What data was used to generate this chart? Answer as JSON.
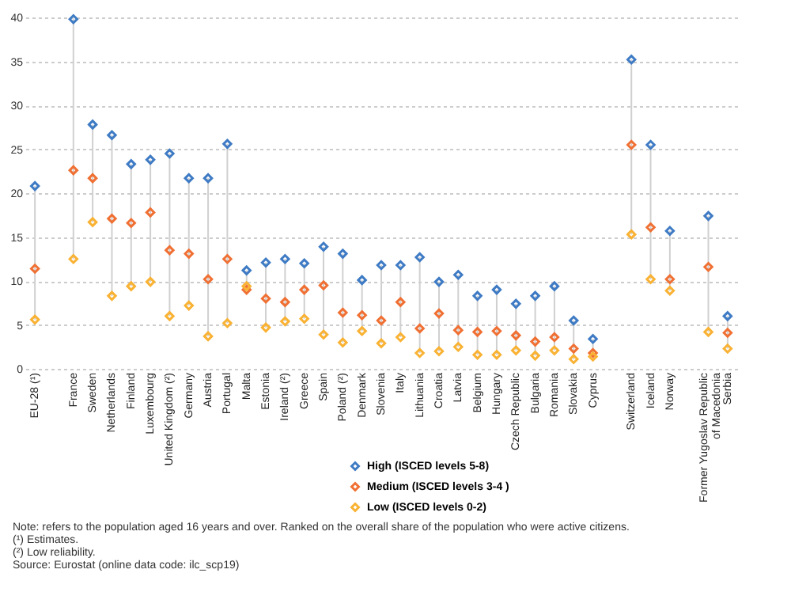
{
  "chart_data": {
    "type": "scatter",
    "marker": "diamond",
    "grid": "y",
    "legend": "bottom",
    "categories": [
      "EU-28 (¹)",
      null,
      "France",
      "Sweden",
      "Netherlands",
      "Finland",
      "Luxembourg",
      "United Kingdom (²)",
      "Germany",
      "Austria",
      "Portugal",
      "Malta",
      "Estonia",
      "Ireland (²)",
      "Greece",
      "Spain",
      "Poland (²)",
      "Denmark",
      "Slovenia",
      "Italy",
      "Lithuania",
      "Croatia",
      "Latvia",
      "Belgium",
      "Hungary",
      "Czech Republic",
      "Bulgaria",
      "Romania",
      "Slovakia",
      "Cyprus",
      null,
      "Switzerland",
      "Iceland",
      "Norway",
      null,
      "Former Yugoslav Republic of Macedonia",
      "Serbia"
    ],
    "ylim": [
      0,
      40
    ],
    "yticks": [
      0,
      5,
      10,
      15,
      20,
      25,
      30,
      35,
      40
    ],
    "series": [
      {
        "name": "High (ISCED levels 5-8)",
        "color": "#3e7bc4",
        "values": [
          20.8,
          null,
          39.8,
          27.8,
          26.6,
          23.3,
          23.8,
          24.5,
          21.7,
          21.7,
          25.6,
          11.2,
          12.1,
          12.5,
          12.0,
          13.9,
          13.1,
          10.1,
          11.8,
          11.8,
          12.7,
          9.9,
          10.7,
          8.3,
          9.0,
          7.4,
          8.3,
          9.4,
          5.5,
          3.4,
          null,
          35.2,
          25.5,
          15.7,
          null,
          17.4,
          6.0
        ]
      },
      {
        "name": "Medium (ISCED levels 3-4 )",
        "color": "#f07033",
        "values": [
          11.4,
          null,
          22.6,
          21.7,
          17.1,
          16.6,
          17.8,
          13.5,
          13.1,
          10.2,
          12.5,
          9.0,
          8.0,
          7.6,
          9.0,
          9.5,
          6.4,
          6.1,
          5.5,
          7.6,
          4.6,
          6.3,
          4.4,
          4.2,
          4.3,
          3.8,
          3.1,
          3.6,
          2.3,
          1.8,
          null,
          25.5,
          16.1,
          10.2,
          null,
          11.6,
          4.1
        ]
      },
      {
        "name": "Low (ISCED levels 0-2)",
        "color": "#f9b233",
        "values": [
          5.6,
          null,
          12.5,
          16.7,
          8.3,
          9.4,
          9.9,
          6.0,
          7.2,
          3.7,
          5.2,
          9.4,
          4.7,
          5.4,
          5.7,
          3.9,
          3.0,
          4.3,
          2.9,
          3.6,
          1.8,
          2.0,
          2.5,
          1.6,
          1.6,
          2.1,
          1.5,
          2.1,
          1.1,
          1.4,
          null,
          15.3,
          10.2,
          8.9,
          null,
          4.2,
          2.3
        ]
      }
    ],
    "annotations": [
      "Note: refers to the population aged 16 years and over. Ranked on the overall share of the population who were active citizens.",
      "(¹) Estimates.",
      "(²) Low reliability.",
      "Source: Eurostat (online data code: ilc_scp19)"
    ]
  }
}
